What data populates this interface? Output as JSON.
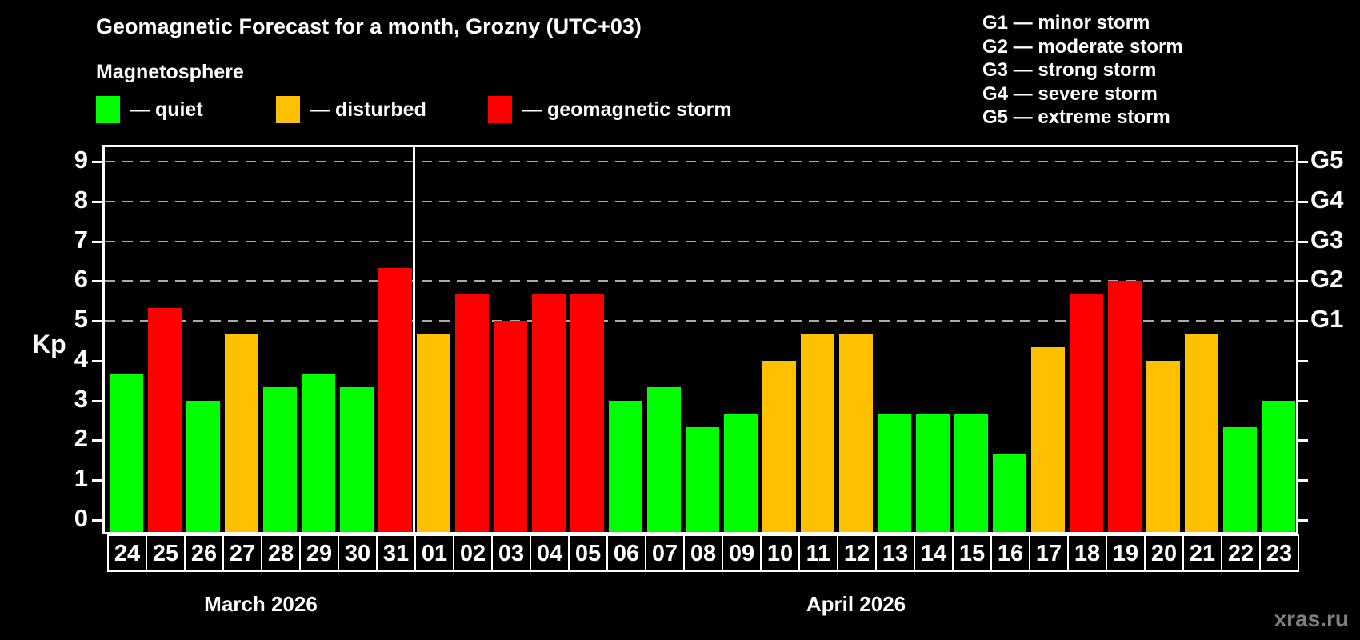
{
  "title": "Geomagnetic Forecast for a month, Grozny (UTC+03)",
  "subtitle": "Magnetosphere",
  "condition_legend": {
    "items": [
      {
        "key": "quiet",
        "label": "— quiet",
        "color": "#00ff00"
      },
      {
        "key": "disturbed",
        "label": "— disturbed",
        "color": "#ffc000"
      },
      {
        "key": "storm",
        "label": "— geomagnetic storm",
        "color": "#ff0000"
      }
    ]
  },
  "storm_scale_legend": {
    "items": [
      {
        "code": "G1",
        "label": "G1 — minor storm"
      },
      {
        "code": "G2",
        "label": "G2 — moderate storm"
      },
      {
        "code": "G3",
        "label": "G3 — strong storm"
      },
      {
        "code": "G4",
        "label": "G4 — severe storm"
      },
      {
        "code": "G5",
        "label": "G5 — extreme storm"
      }
    ]
  },
  "watermark": "xras.ru",
  "chart_data": {
    "type": "bar",
    "title": "Geomagnetic Forecast for a month, Grozny (UTC+03)",
    "xlabel": "",
    "ylabel": "Kp",
    "ylim": [
      0,
      9
    ],
    "yticks": [
      0,
      1,
      2,
      3,
      4,
      5,
      6,
      7,
      8,
      9
    ],
    "gridlines_at_kp": [
      5,
      6,
      7,
      8,
      9
    ],
    "grid": "horizontal dashed at storm levels only",
    "legend_position": "top",
    "right_axis_labels": [
      {
        "code": "G1",
        "kp": 5
      },
      {
        "code": "G2",
        "kp": 6
      },
      {
        "code": "G3",
        "kp": 7
      },
      {
        "code": "G4",
        "kp": 8
      },
      {
        "code": "G5",
        "kp": 9
      }
    ],
    "status_colors": {
      "quiet": "#00ff00",
      "disturbed": "#ffc000",
      "storm": "#ff0000"
    },
    "sections": [
      {
        "month": "March 2026",
        "days": [
          {
            "day": "24",
            "kp": 3.67,
            "status": "quiet"
          },
          {
            "day": "25",
            "kp": 5.33,
            "status": "storm"
          },
          {
            "day": "26",
            "kp": 3.0,
            "status": "quiet"
          },
          {
            "day": "27",
            "kp": 4.67,
            "status": "disturbed"
          },
          {
            "day": "28",
            "kp": 3.33,
            "status": "quiet"
          },
          {
            "day": "29",
            "kp": 3.67,
            "status": "quiet"
          },
          {
            "day": "30",
            "kp": 3.33,
            "status": "quiet"
          },
          {
            "day": "31",
            "kp": 6.33,
            "status": "storm"
          }
        ]
      },
      {
        "month": "April 2026",
        "days": [
          {
            "day": "01",
            "kp": 4.67,
            "status": "disturbed"
          },
          {
            "day": "02",
            "kp": 5.67,
            "status": "storm"
          },
          {
            "day": "03",
            "kp": 5.0,
            "status": "storm"
          },
          {
            "day": "04",
            "kp": 5.67,
            "status": "storm"
          },
          {
            "day": "05",
            "kp": 5.67,
            "status": "storm"
          },
          {
            "day": "06",
            "kp": 3.0,
            "status": "quiet"
          },
          {
            "day": "07",
            "kp": 3.33,
            "status": "quiet"
          },
          {
            "day": "08",
            "kp": 2.33,
            "status": "quiet"
          },
          {
            "day": "09",
            "kp": 2.67,
            "status": "quiet"
          },
          {
            "day": "10",
            "kp": 4.0,
            "status": "disturbed"
          },
          {
            "day": "11",
            "kp": 4.67,
            "status": "disturbed"
          },
          {
            "day": "12",
            "kp": 4.67,
            "status": "disturbed"
          },
          {
            "day": "13",
            "kp": 2.67,
            "status": "quiet"
          },
          {
            "day": "14",
            "kp": 2.67,
            "status": "quiet"
          },
          {
            "day": "15",
            "kp": 2.67,
            "status": "quiet"
          },
          {
            "day": "16",
            "kp": 1.67,
            "status": "quiet"
          },
          {
            "day": "17",
            "kp": 4.33,
            "status": "disturbed"
          },
          {
            "day": "18",
            "kp": 5.67,
            "status": "storm"
          },
          {
            "day": "19",
            "kp": 6.0,
            "status": "storm"
          },
          {
            "day": "20",
            "kp": 4.0,
            "status": "disturbed"
          },
          {
            "day": "21",
            "kp": 4.67,
            "status": "disturbed"
          },
          {
            "day": "22",
            "kp": 2.33,
            "status": "quiet"
          },
          {
            "day": "23",
            "kp": 3.0,
            "status": "quiet"
          }
        ]
      }
    ]
  }
}
